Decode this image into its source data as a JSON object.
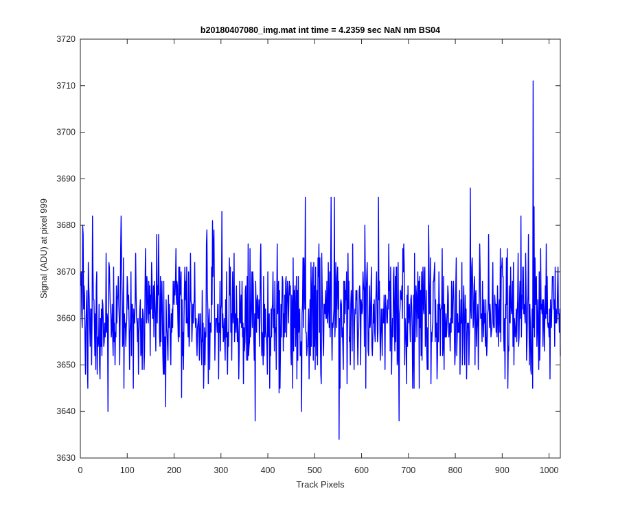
{
  "chart_data": {
    "type": "line",
    "title": "b20180407080_img.mat int time = 4.2359 sec  NaN nm BS04",
    "xlabel": "Track Pixels",
    "ylabel": "Signal (ADU) at pixel 999",
    "xlim": [
      0,
      1024
    ],
    "ylim": [
      3630,
      3720
    ],
    "xticks": [
      0,
      100,
      200,
      300,
      400,
      500,
      600,
      700,
      800,
      900,
      1000
    ],
    "yticks": [
      3630,
      3640,
      3650,
      3660,
      3670,
      3680,
      3690,
      3700,
      3710,
      3720
    ],
    "grid": false,
    "legend": "none",
    "line_color": "#0000ff",
    "noise": {
      "n_points": 1024,
      "mean": 3661,
      "stdev": 7,
      "min": 3645,
      "max": 3682,
      "seed": 20180407
    },
    "spikes": [
      {
        "x": 5,
        "y": 3680
      },
      {
        "x": 16,
        "y": 3645
      },
      {
        "x": 59,
        "y": 3640
      },
      {
        "x": 87,
        "y": 3682
      },
      {
        "x": 182,
        "y": 3641
      },
      {
        "x": 216,
        "y": 3643
      },
      {
        "x": 263,
        "y": 3645
      },
      {
        "x": 282,
        "y": 3681
      },
      {
        "x": 302,
        "y": 3683
      },
      {
        "x": 373,
        "y": 3638
      },
      {
        "x": 424,
        "y": 3644
      },
      {
        "x": 472,
        "y": 3640
      },
      {
        "x": 480,
        "y": 3686
      },
      {
        "x": 535,
        "y": 3686
      },
      {
        "x": 542,
        "y": 3686
      },
      {
        "x": 552,
        "y": 3634
      },
      {
        "x": 636,
        "y": 3686
      },
      {
        "x": 680,
        "y": 3638
      },
      {
        "x": 743,
        "y": 3680
      },
      {
        "x": 832,
        "y": 3688
      },
      {
        "x": 966,
        "y": 3711
      },
      {
        "x": 968,
        "y": 3684
      }
    ]
  }
}
